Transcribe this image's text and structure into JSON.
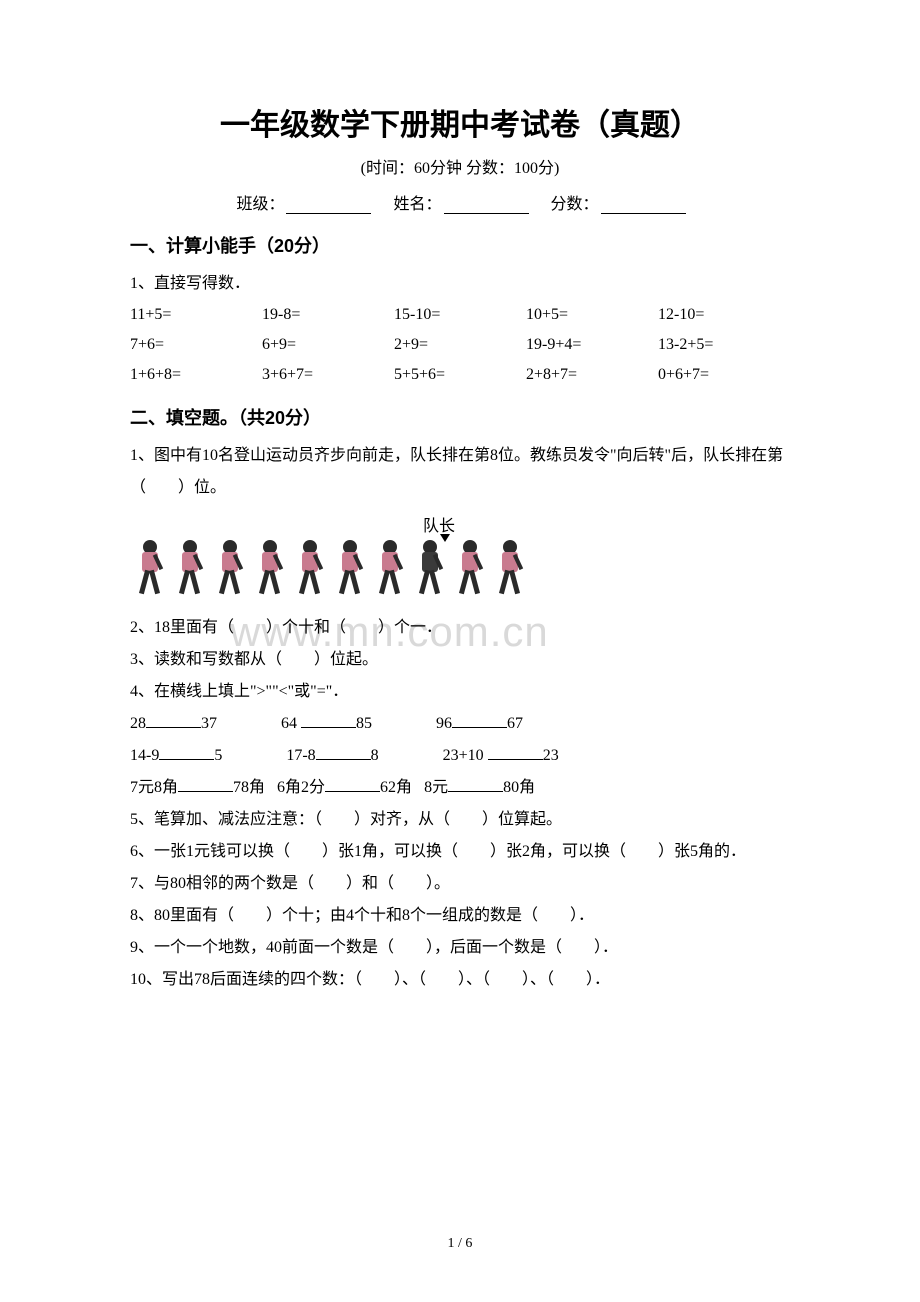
{
  "title": "一年级数学下册期中考试卷（真题）",
  "subtitle": "(时间：60分钟   分数：100分)",
  "info": {
    "class": "班级：",
    "name": "姓名：",
    "score": "分数："
  },
  "section1": {
    "header": "一、计算小能手（20分）",
    "q1_label": "1、直接写得数．",
    "rows": [
      [
        "11+5=",
        "19-8=",
        "15-10=",
        "10+5=",
        "12-10="
      ],
      [
        "7+6=",
        "6+9=",
        "2+9=",
        "19-9+4=",
        "13-2+5="
      ],
      [
        "1+6+8=",
        "3+6+7=",
        "5+5+6=",
        "2+8+7=",
        "0+6+7="
      ]
    ]
  },
  "section2": {
    "header": "二、填空题。（共20分）",
    "q1": "1、图中有10名登山运动员齐步向前走，队长排在第8位。教练员发令\"向后转\"后，队长排在第（　　）位。",
    "captain": "队长",
    "q2": "2、18里面有（　　）个十和（　　）个一．",
    "q3": "3、读数和写数都从（　　）位起。",
    "q4_label": "4、在横线上填上\">\"\"<\"或\"=\"．",
    "q4_rows": [
      [
        [
          "28",
          "37"
        ],
        [
          "64",
          "85"
        ],
        [
          "96",
          "67"
        ]
      ],
      [
        [
          "14-9",
          "5"
        ],
        [
          "17-8",
          "8"
        ],
        [
          "23+10",
          "23"
        ]
      ],
      [
        [
          "7元8角",
          "78角"
        ],
        [
          "6角2分",
          "62角"
        ],
        [
          "8元",
          "80角"
        ]
      ]
    ],
    "q5": "5、笔算加、减法应注意：（　　）对齐，从（　　）位算起。",
    "q6": "6、一张1元钱可以换（　　）张1角，可以换（　　）张2角，可以换（　　）张5角的．",
    "q7": "7、与80相邻的两个数是（　　）和（　　）。",
    "q8": "8、80里面有（　　）个十；由4个十和8个一组成的数是（　　）．",
    "q9": "9、一个一个地数，40前面一个数是（　　），后面一个数是（　　）．",
    "q10": "10、写出78后面连续的四个数：（　　）、（　　）、（　　）、（　　）．"
  },
  "watermark": "www.mn.com.cn",
  "pager": "1 / 6"
}
